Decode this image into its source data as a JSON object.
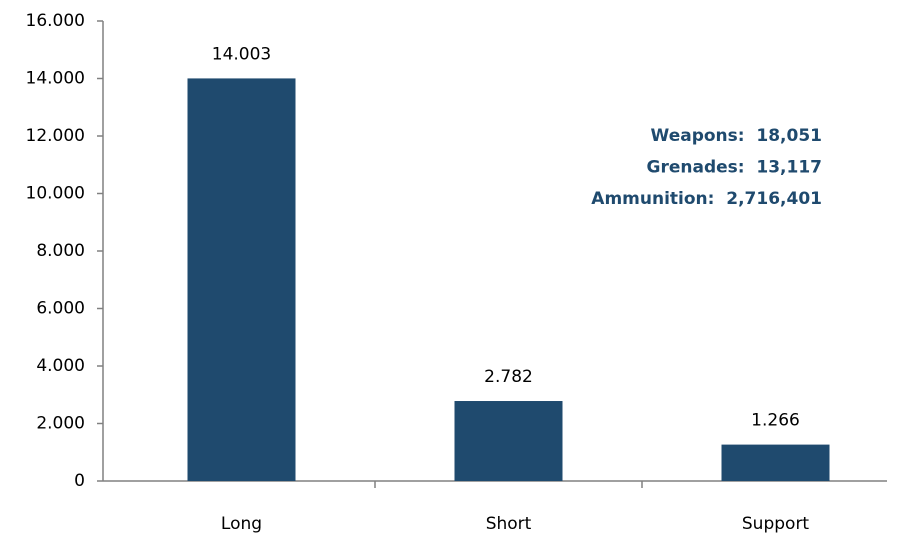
{
  "chart_data": {
    "type": "bar",
    "categories": [
      "Long",
      "Short",
      "Support"
    ],
    "values": [
      14003,
      2782,
      1266
    ],
    "value_labels": [
      "14.003",
      "2.782",
      "1.266"
    ],
    "color": "#1f4a6e",
    "ylim": [
      0,
      16000
    ],
    "yticks": [
      0,
      {
        "value": 2000,
        "label": "2.000"
      },
      {
        "value": 4000,
        "label": "4.000"
      },
      {
        "value": 6000,
        "label": "6.000"
      },
      {
        "value": 8000,
        "label": "8.000"
      },
      {
        "value": 10000,
        "label": "10.000"
      },
      {
        "value": 12000,
        "label": "12.000"
      },
      {
        "value": 14000,
        "label": "14.000"
      },
      {
        "value": 16000,
        "label": "16.000"
      }
    ],
    "grid": false,
    "annotations": [
      "Weapons:  18,051",
      "Grenades:  13,117",
      "Ammunition:  2,716,401"
    ]
  }
}
